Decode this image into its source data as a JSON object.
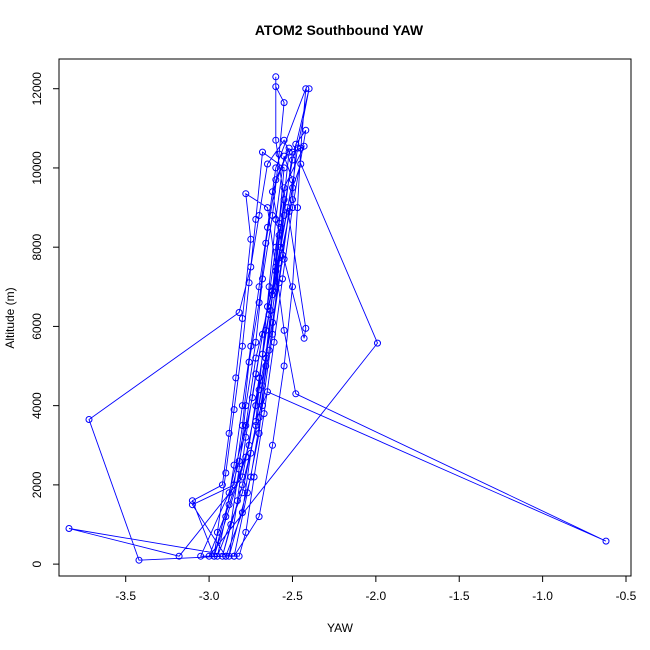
{
  "chart_data": {
    "type": "line",
    "title": "ATOM2 Southbound YAW",
    "xlabel": "YAW",
    "ylabel": "Altitude (m)",
    "xlim": [
      -3.9,
      -0.47
    ],
    "ylim": [
      -300,
      12750
    ],
    "xticks": [
      -3.5,
      -3.0,
      -2.5,
      -2.0,
      -1.5,
      -1.0,
      -0.5
    ],
    "xtick_labels": [
      "-3.5",
      "-3.0",
      "-2.5",
      "-2.0",
      "-1.5",
      "-1.0",
      "-0.5"
    ],
    "yticks": [
      0,
      2000,
      4000,
      6000,
      8000,
      10000,
      12000
    ],
    "ytick_labels": [
      "0",
      "2000",
      "4000",
      "6000",
      "8000",
      "10000",
      "12000"
    ],
    "grid": false,
    "series_color": "#0000ff",
    "series": [
      {
        "values": [
          {
            "x": -2.85,
            "y": 200
          },
          {
            "x": -2.7,
            "y": 1200
          },
          {
            "x": -2.62,
            "y": 3000
          },
          {
            "x": -2.55,
            "y": 5000
          },
          {
            "x": -2.5,
            "y": 7000
          },
          {
            "x": -2.47,
            "y": 9000
          },
          {
            "x": -2.45,
            "y": 10500
          },
          {
            "x": -2.42,
            "y": 12000
          },
          {
            "x": -2.6,
            "y": 10000
          },
          {
            "x": -2.65,
            "y": 8500
          },
          {
            "x": -2.7,
            "y": 7000
          },
          {
            "x": -2.75,
            "y": 5500
          },
          {
            "x": -2.8,
            "y": 4000
          },
          {
            "x": -2.85,
            "y": 2500
          },
          {
            "x": -2.9,
            "y": 1200
          },
          {
            "x": -2.95,
            "y": 200
          },
          {
            "x": -2.8,
            "y": 1800
          },
          {
            "x": -2.72,
            "y": 3500
          },
          {
            "x": -2.66,
            "y": 5200
          },
          {
            "x": -2.6,
            "y": 7000
          },
          {
            "x": -2.55,
            "y": 8800
          },
          {
            "x": -2.5,
            "y": 10400
          },
          {
            "x": -2.43,
            "y": 10550
          },
          {
            "x": -2.55,
            "y": 9500
          },
          {
            "x": -2.6,
            "y": 8000
          },
          {
            "x": -2.65,
            "y": 6500
          },
          {
            "x": -2.72,
            "y": 4800
          },
          {
            "x": -2.78,
            "y": 3200
          },
          {
            "x": -2.83,
            "y": 1600
          },
          {
            "x": -2.88,
            "y": 200
          },
          {
            "x": -2.75,
            "y": 2200
          },
          {
            "x": -2.68,
            "y": 4000
          },
          {
            "x": -2.62,
            "y": 5800
          },
          {
            "x": -2.58,
            "y": 7600
          },
          {
            "x": -2.55,
            "y": 9200
          },
          {
            "x": -2.6,
            "y": 10700
          },
          {
            "x": -2.6,
            "y": 12300
          },
          {
            "x": -2.6,
            "y": 12050
          },
          {
            "x": -2.55,
            "y": 11650
          },
          {
            "x": -2.58,
            "y": 10350
          },
          {
            "x": -2.62,
            "y": 8800
          },
          {
            "x": -2.68,
            "y": 7200
          },
          {
            "x": -2.72,
            "y": 5600
          },
          {
            "x": -2.78,
            "y": 4000
          },
          {
            "x": -2.82,
            "y": 2400
          },
          {
            "x": -2.87,
            "y": 1000
          },
          {
            "x": -2.92,
            "y": 200
          },
          {
            "x": -2.8,
            "y": 2000
          },
          {
            "x": -2.7,
            "y": 3700
          },
          {
            "x": -2.64,
            "y": 5400
          },
          {
            "x": -2.58,
            "y": 7100
          },
          {
            "x": -2.52,
            "y": 8900
          },
          {
            "x": -2.47,
            "y": 10500
          },
          {
            "x": -2.4,
            "y": 12000
          },
          {
            "x": -2.5,
            "y": 10200
          },
          {
            "x": -2.58,
            "y": 8300
          },
          {
            "x": -2.63,
            "y": 6400
          },
          {
            "x": -2.68,
            "y": 4500
          },
          {
            "x": -2.75,
            "y": 2800
          },
          {
            "x": -2.8,
            "y": 1300
          },
          {
            "x": -2.9,
            "y": 200
          },
          {
            "x": -3.42,
            "y": 100
          },
          {
            "x": -3.72,
            "y": 3650
          },
          {
            "x": -2.82,
            "y": 6350
          },
          {
            "x": -2.75,
            "y": 7500
          },
          {
            "x": -2.7,
            "y": 8800
          },
          {
            "x": -2.65,
            "y": 10100
          },
          {
            "x": -2.55,
            "y": 10700
          },
          {
            "x": -2.52,
            "y": 10400
          },
          {
            "x": -2.57,
            "y": 8500
          },
          {
            "x": -2.62,
            "y": 6800
          },
          {
            "x": -2.66,
            "y": 5000
          },
          {
            "x": -2.7,
            "y": 3300
          },
          {
            "x": -2.77,
            "y": 1800
          },
          {
            "x": -2.85,
            "y": 200
          },
          {
            "x": -3.84,
            "y": 900
          },
          {
            "x": -3.18,
            "y": 200
          },
          {
            "x": -2.8,
            "y": 2200
          },
          {
            "x": -2.72,
            "y": 4000
          },
          {
            "x": -2.66,
            "y": 5900
          },
          {
            "x": -2.58,
            "y": 7600
          },
          {
            "x": -2.5,
            "y": 9200
          },
          {
            "x": -2.48,
            "y": 10600
          },
          {
            "x": -2.42,
            "y": 10950
          },
          {
            "x": -2.5,
            "y": 9000
          },
          {
            "x": -2.56,
            "y": 7200
          },
          {
            "x": -2.61,
            "y": 5600
          },
          {
            "x": -2.67,
            "y": 3800
          },
          {
            "x": -2.73,
            "y": 2200
          },
          {
            "x": -2.78,
            "y": 800
          },
          {
            "x": -2.82,
            "y": 200
          },
          {
            "x": -3.05,
            "y": 200
          },
          {
            "x": -2.88,
            "y": 1800
          },
          {
            "x": -2.78,
            "y": 3500
          },
          {
            "x": -2.72,
            "y": 5200
          },
          {
            "x": -2.62,
            "y": 6900
          },
          {
            "x": -2.58,
            "y": 8600
          },
          {
            "x": -2.55,
            "y": 10000
          },
          {
            "x": -2.68,
            "y": 10400
          },
          {
            "x": -2.72,
            "y": 8700
          },
          {
            "x": -2.76,
            "y": 7100
          },
          {
            "x": -2.8,
            "y": 5500
          },
          {
            "x": -2.85,
            "y": 3900
          },
          {
            "x": -2.9,
            "y": 2300
          },
          {
            "x": -2.95,
            "y": 800
          },
          {
            "x": -2.97,
            "y": 200
          },
          {
            "x": -2.78,
            "y": 2700
          },
          {
            "x": -2.7,
            "y": 4400
          },
          {
            "x": -2.62,
            "y": 6100
          },
          {
            "x": -2.56,
            "y": 7800
          },
          {
            "x": -2.5,
            "y": 9500
          },
          {
            "x": -2.45,
            "y": 10100
          },
          {
            "x": -1.99,
            "y": 5580
          },
          {
            "x": -3.0,
            "y": 200
          },
          {
            "x": -2.88,
            "y": 1500
          },
          {
            "x": -2.76,
            "y": 3000
          },
          {
            "x": -2.7,
            "y": 4700
          },
          {
            "x": -2.64,
            "y": 6300
          },
          {
            "x": -2.57,
            "y": 8000
          },
          {
            "x": -2.5,
            "y": 9700
          },
          {
            "x": -2.55,
            "y": 10300
          },
          {
            "x": -2.6,
            "y": 8700
          },
          {
            "x": -2.64,
            "y": 7000
          },
          {
            "x": -2.68,
            "y": 5300
          },
          {
            "x": -2.72,
            "y": 3600
          },
          {
            "x": -2.65,
            "y": 4350
          },
          {
            "x": -0.62,
            "y": 580
          },
          {
            "x": -2.48,
            "y": 4300
          },
          {
            "x": -2.55,
            "y": 5900
          },
          {
            "x": -2.6,
            "y": 7500
          },
          {
            "x": -2.65,
            "y": 9000
          },
          {
            "x": -2.78,
            "y": 9350
          },
          {
            "x": -2.75,
            "y": 8200
          },
          {
            "x": -2.8,
            "y": 6200
          },
          {
            "x": -2.84,
            "y": 4700
          },
          {
            "x": -2.88,
            "y": 3300
          },
          {
            "x": -2.92,
            "y": 2000
          },
          {
            "x": -3.1,
            "y": 1600
          },
          {
            "x": -2.97,
            "y": 200
          },
          {
            "x": -2.82,
            "y": 2600
          },
          {
            "x": -2.74,
            "y": 4200
          },
          {
            "x": -2.68,
            "y": 5800
          },
          {
            "x": -2.6,
            "y": 7400
          },
          {
            "x": -2.53,
            "y": 9000
          },
          {
            "x": -2.42,
            "y": 5950
          },
          {
            "x": -2.43,
            "y": 5700
          },
          {
            "x": -2.55,
            "y": 7700
          },
          {
            "x": -2.62,
            "y": 9400
          },
          {
            "x": -2.52,
            "y": 10500
          },
          {
            "x": -2.6,
            "y": 9700
          },
          {
            "x": -2.66,
            "y": 8100
          },
          {
            "x": -2.7,
            "y": 6600
          },
          {
            "x": -2.76,
            "y": 5100
          },
          {
            "x": -2.8,
            "y": 3500
          },
          {
            "x": -2.85,
            "y": 2000
          },
          {
            "x": -3.1,
            "y": 1500
          },
          {
            "x": -2.9,
            "y": 200
          }
        ]
      }
    ]
  }
}
